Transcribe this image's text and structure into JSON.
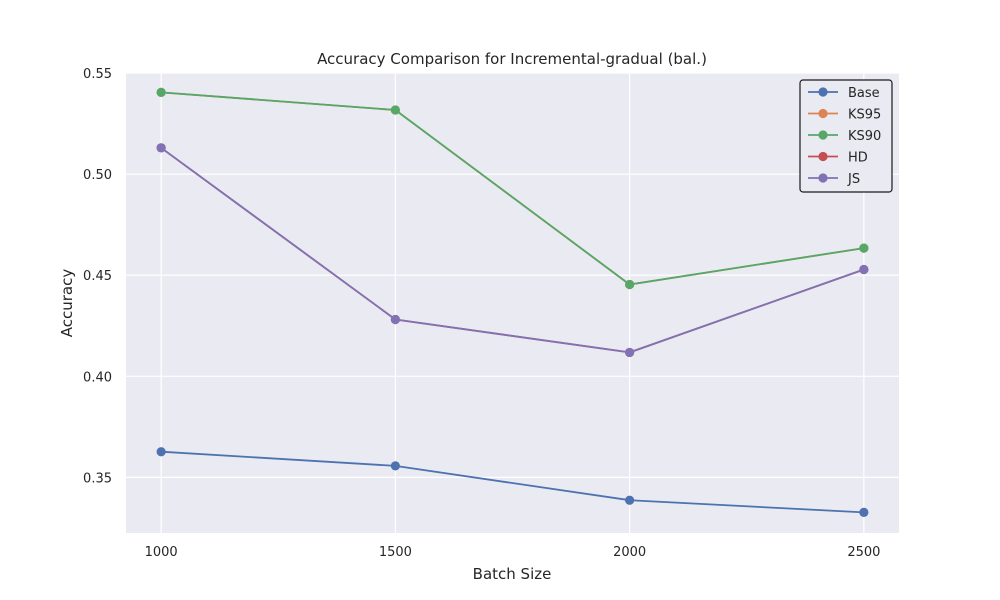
{
  "chart_data": {
    "type": "line",
    "title": "Accuracy Comparison for Incremental-gradual (bal.)",
    "xlabel": "Batch Size",
    "ylabel": "Accuracy",
    "x": [
      1000,
      1500,
      2000,
      2500
    ],
    "x_ticks": [
      "1000",
      "1500",
      "2000",
      "2500"
    ],
    "xlim": [
      925,
      2575
    ],
    "ylim": [
      0.3225,
      0.55
    ],
    "y_ticks": [
      "0.35",
      "0.40",
      "0.45",
      "0.50",
      "0.55"
    ],
    "y_tick_values": [
      0.35,
      0.4,
      0.45,
      0.5,
      0.55
    ],
    "grid": true,
    "legend_position": "top-right",
    "series": [
      {
        "name": "Base",
        "color": "#4c72b0",
        "values": [
          0.3627,
          0.3557,
          0.3387,
          0.3327
        ]
      },
      {
        "name": "KS95",
        "color": "#dd8452",
        "values": [
          0.5404,
          0.5317,
          0.4454,
          0.4634
        ]
      },
      {
        "name": "KS90",
        "color": "#55a868",
        "values": [
          0.5404,
          0.5317,
          0.4454,
          0.4634
        ]
      },
      {
        "name": "HD",
        "color": "#c44e52",
        "values": [
          0.513,
          0.4281,
          0.4118,
          0.4528
        ]
      },
      {
        "name": "JS",
        "color": "#8172b3",
        "values": [
          0.513,
          0.4281,
          0.4118,
          0.4528
        ]
      }
    ]
  }
}
